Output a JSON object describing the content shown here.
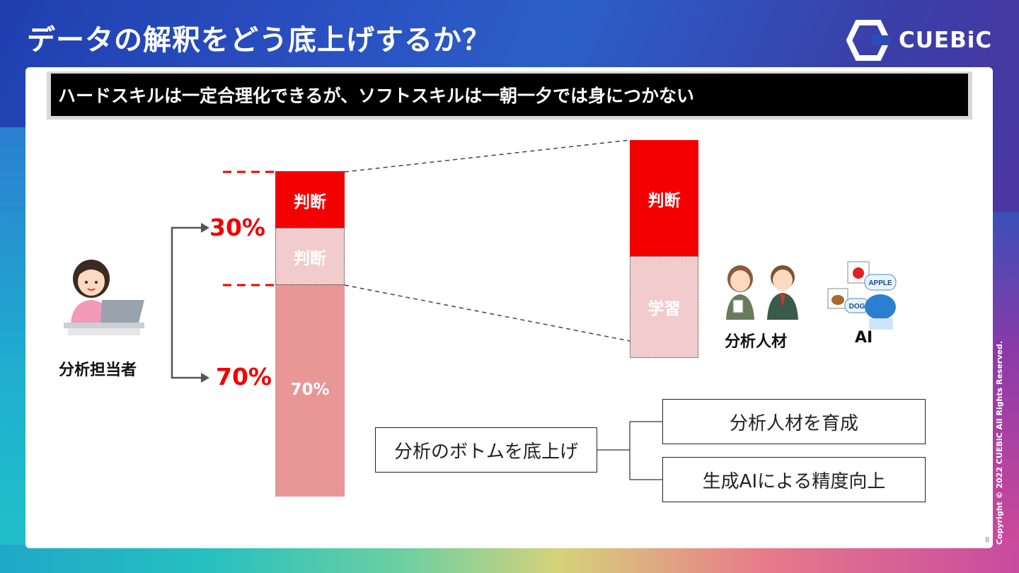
{
  "header": {
    "title": "データの解釈をどう底上げするか？",
    "logo_text": "CUEBiC",
    "copyright": "Copyright © 2022 CUEBiC All Rights Reserved."
  },
  "banner": {
    "text": "ハードスキルは一定合理化できるが、ソフトスキルは一朝一夕では身につかない"
  },
  "left_chart": {
    "person_label": "分析担当者",
    "pct_top": "30%",
    "pct_bottom": "70%",
    "segment_top_label": "判断",
    "segment_mid_label": "判断",
    "segment_bottom_label": "70%"
  },
  "right_chart": {
    "segment_top_label": "判断",
    "segment_bottom_label": "学習",
    "people_label": "分析人材",
    "ai_label": "AI",
    "ai_cards": [
      "APPLE",
      "DOG"
    ]
  },
  "tree": {
    "root": "分析のボトムを底上げ",
    "branch_a": "分析人材を育成",
    "branch_b": "生成AIによる精度向上"
  },
  "footer": {
    "page_number": "8"
  },
  "colors": {
    "accent_red": "#f50000",
    "light_pink": "#f2cccc",
    "mid_pink": "#e89696"
  }
}
